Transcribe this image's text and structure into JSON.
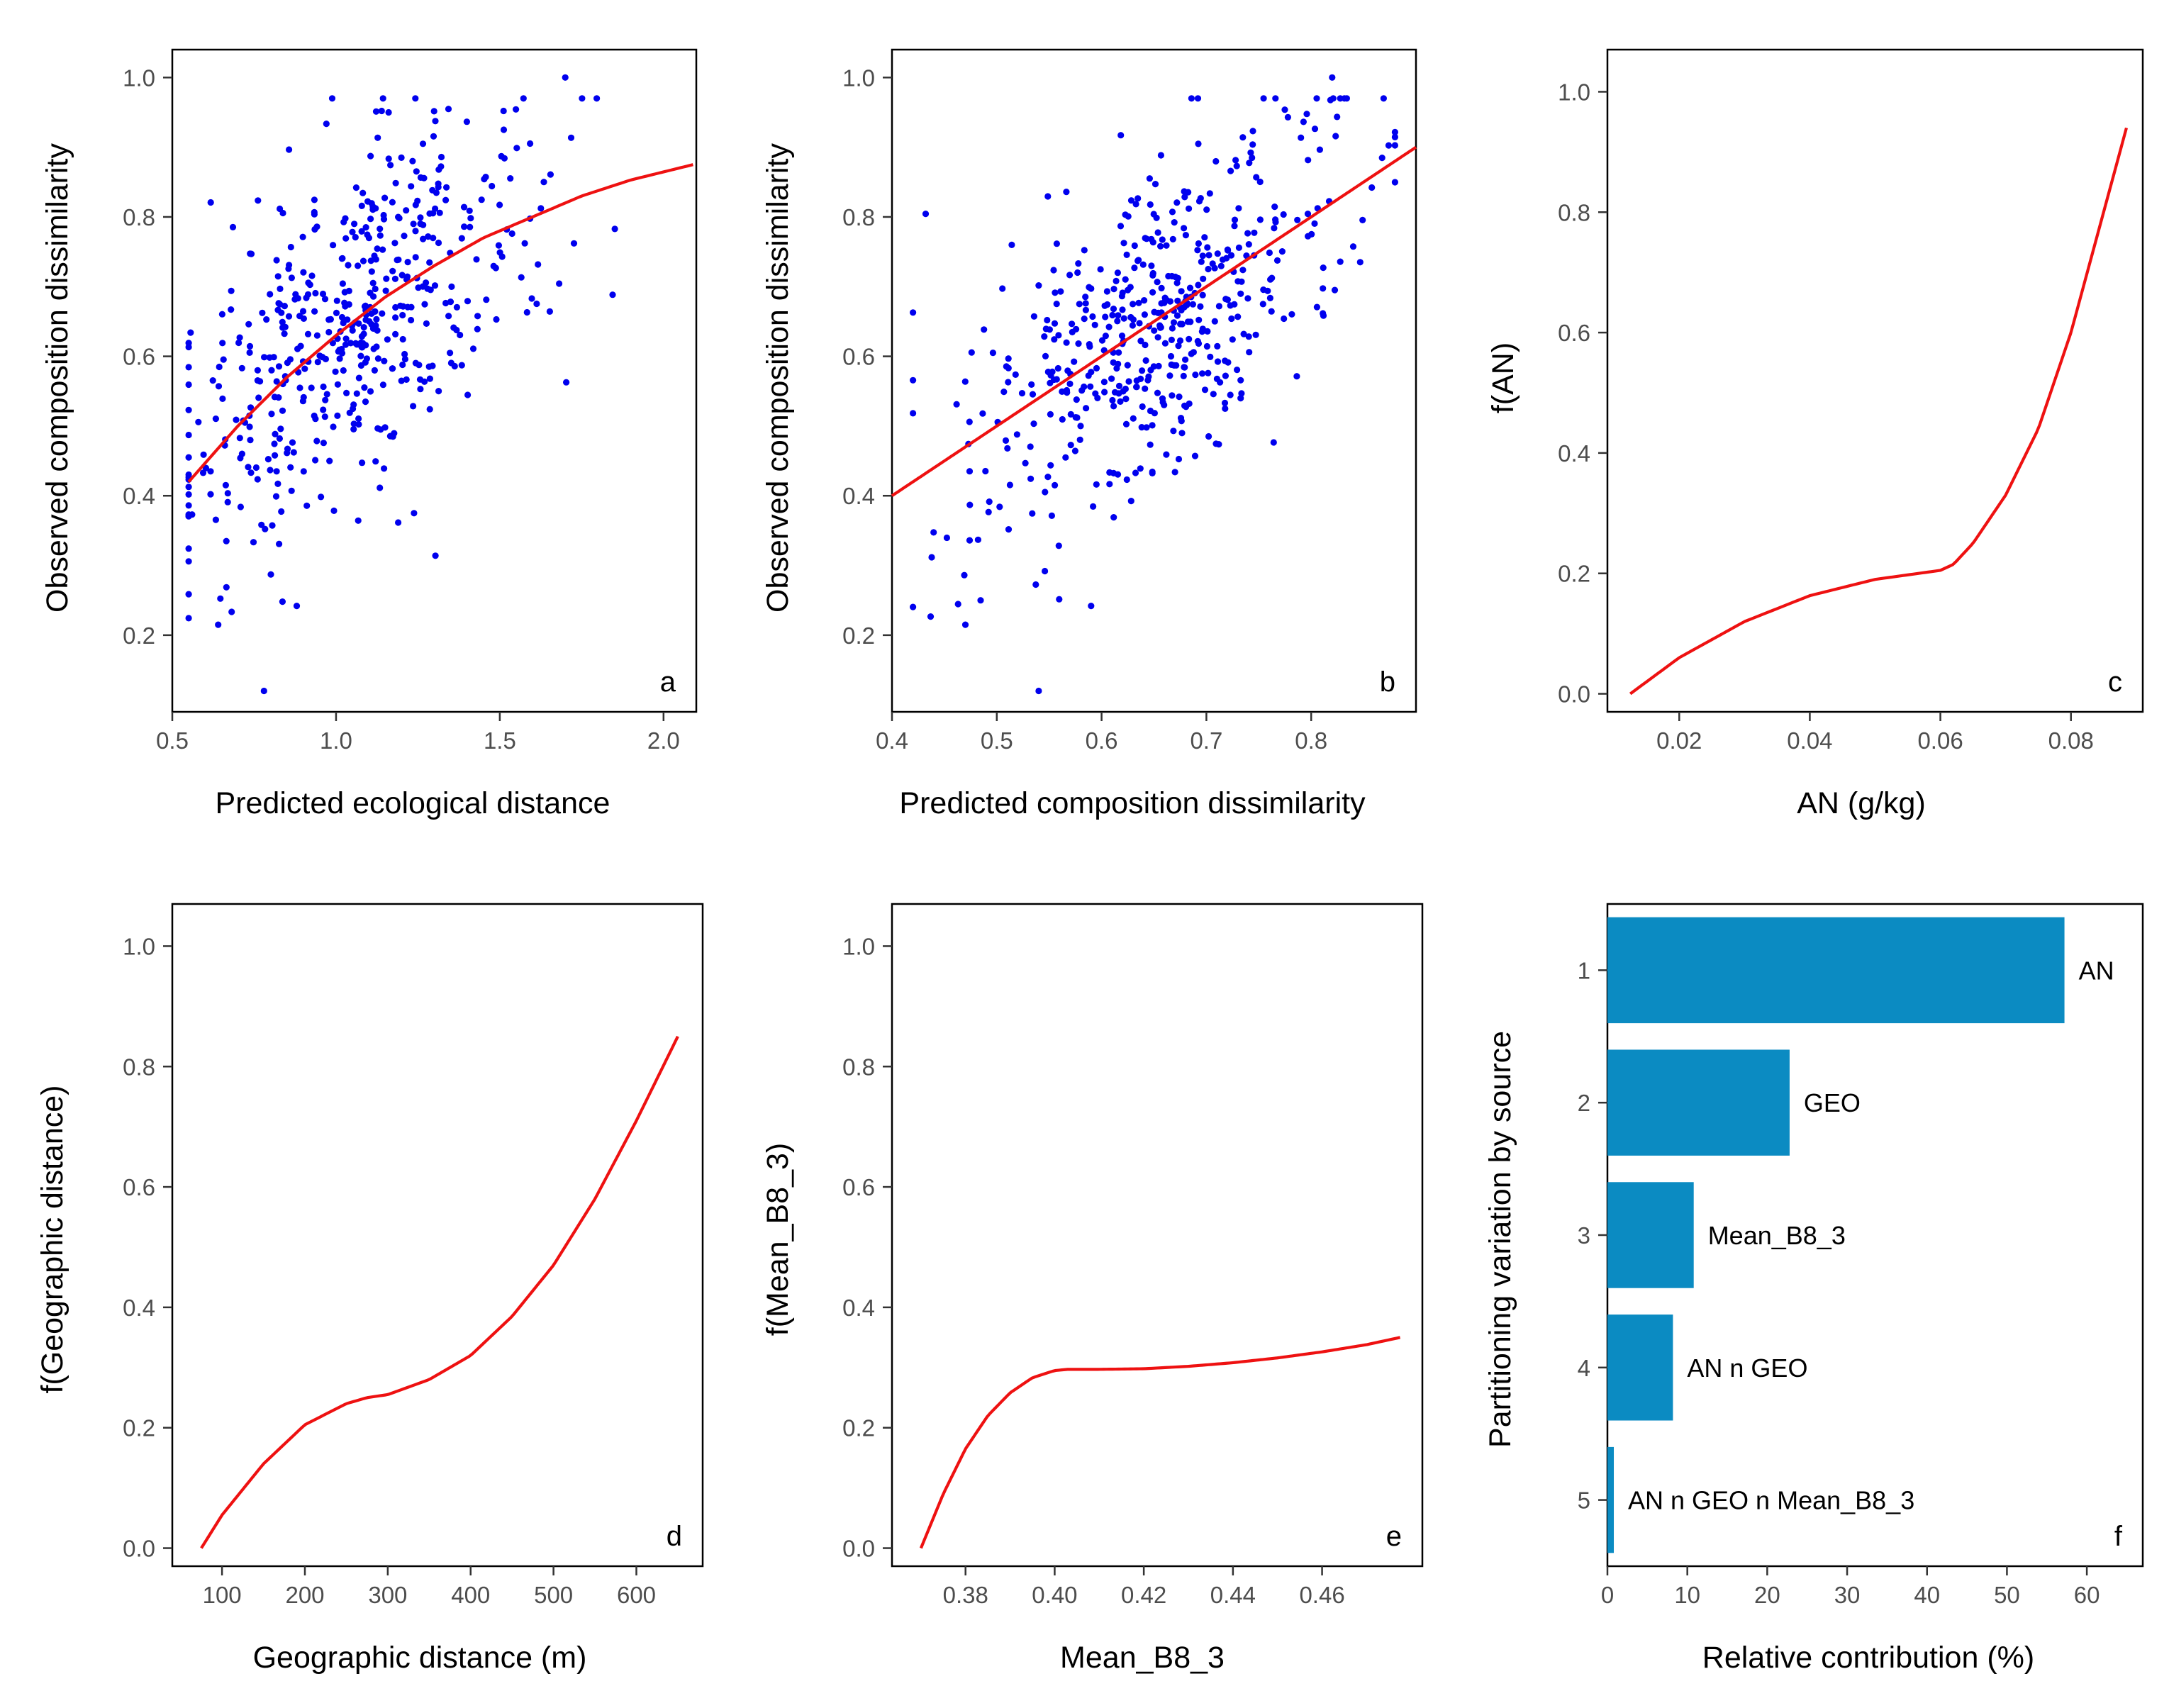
{
  "colors": {
    "points": "#0000ee",
    "curve": "#ee1111",
    "bars": "#0b8bc2",
    "frame": "#000000"
  },
  "chart_data": [
    {
      "panel": "a",
      "type": "scatter",
      "xlabel": "Predicted ecological distance",
      "ylabel": "Observed composition dissimilarity",
      "xlim": [
        0.5,
        2.1
      ],
      "ylim": [
        0.09,
        1.04
      ],
      "xticks": [
        0.5,
        1.0,
        1.5,
        2.0
      ],
      "xtick_labels": [
        "0.5",
        "1.0",
        "1.5",
        "2.0"
      ],
      "yticks": [
        0.2,
        0.4,
        0.6,
        0.8,
        1.0
      ],
      "ytick_labels": [
        "0.2",
        "0.4",
        "0.6",
        "0.8",
        "1.0"
      ],
      "fit_line": {
        "x": [
          0.55,
          0.7,
          0.85,
          1.0,
          1.15,
          1.3,
          1.45,
          1.6,
          1.75,
          1.9,
          2.09
        ],
        "y": [
          0.42,
          0.5,
          0.57,
          0.63,
          0.685,
          0.73,
          0.77,
          0.8,
          0.83,
          0.853,
          0.875
        ]
      },
      "n_points": 500,
      "outliers": [
        [
          0.78,
          0.12
        ],
        [
          1.7,
          1.0
        ],
        [
          0.64,
          0.215
        ],
        [
          0.88,
          0.242
        ]
      ]
    },
    {
      "panel": "b",
      "type": "scatter",
      "xlabel": "Predicted composition dissimilarity",
      "ylabel": "Observed composition dissimilarity",
      "xlim": [
        0.4,
        0.9
      ],
      "ylim": [
        0.09,
        1.04
      ],
      "xticks": [
        0.4,
        0.5,
        0.6,
        0.7,
        0.8
      ],
      "xtick_labels": [
        "0.4",
        "0.5",
        "0.6",
        "0.7",
        "0.8"
      ],
      "yticks": [
        0.2,
        0.4,
        0.6,
        0.8,
        1.0
      ],
      "ytick_labels": [
        "0.2",
        "0.4",
        "0.6",
        "0.8",
        "1.0"
      ],
      "fit_line": {
        "x": [
          0.4,
          0.9
        ],
        "y": [
          0.4,
          0.9
        ]
      },
      "n_points": 500,
      "outliers": [
        [
          0.54,
          0.12
        ],
        [
          0.82,
          1.0
        ],
        [
          0.47,
          0.215
        ],
        [
          0.59,
          0.242
        ]
      ]
    },
    {
      "panel": "c",
      "type": "line",
      "xlabel": "AN (g/kg)",
      "ylabel": "f(AN)",
      "xlim": [
        0.009,
        0.091
      ],
      "ylim": [
        -0.03,
        1.07
      ],
      "xticks": [
        0.02,
        0.04,
        0.06,
        0.08
      ],
      "xtick_labels": [
        "0.02",
        "0.04",
        "0.06",
        "0.08"
      ],
      "yticks": [
        0.0,
        0.2,
        0.4,
        0.6,
        0.8,
        1.0
      ],
      "ytick_labels": [
        "0.0",
        "0.2",
        "0.4",
        "0.6",
        "0.8",
        "1.0"
      ],
      "series": [
        {
          "name": "f(AN)",
          "x": [
            0.0125,
            0.02,
            0.03,
            0.04,
            0.05,
            0.06,
            0.062,
            0.065,
            0.07,
            0.075,
            0.08,
            0.085,
            0.0885
          ],
          "y": [
            0.0,
            0.06,
            0.12,
            0.163,
            0.19,
            0.205,
            0.215,
            0.25,
            0.33,
            0.44,
            0.6,
            0.8,
            0.94
          ]
        }
      ]
    },
    {
      "panel": "d",
      "type": "line",
      "xlabel": "Geographic distance (m)",
      "ylabel": "f(Geographic distance)",
      "xlim": [
        40,
        680
      ],
      "ylim": [
        -0.03,
        1.07
      ],
      "xticks": [
        100,
        200,
        300,
        400,
        500,
        600
      ],
      "xtick_labels": [
        "100",
        "200",
        "300",
        "400",
        "500",
        "600"
      ],
      "yticks": [
        0.0,
        0.2,
        0.4,
        0.6,
        0.8,
        1.0
      ],
      "ytick_labels": [
        "0.0",
        "0.2",
        "0.4",
        "0.6",
        "0.8",
        "1.0"
      ],
      "series": [
        {
          "name": "f(Geographic distance)",
          "x": [
            75,
            100,
            150,
            200,
            250,
            275,
            300,
            350,
            400,
            450,
            500,
            550,
            600,
            650
          ],
          "y": [
            0.0,
            0.055,
            0.14,
            0.205,
            0.24,
            0.25,
            0.255,
            0.28,
            0.32,
            0.385,
            0.47,
            0.58,
            0.71,
            0.85
          ]
        }
      ]
    },
    {
      "panel": "e",
      "type": "line",
      "xlabel": "Mean_B8_3",
      "ylabel": "f(Mean_B8_3)",
      "xlim": [
        0.3635,
        0.4825
      ],
      "ylim": [
        -0.03,
        1.07
      ],
      "xticks": [
        0.38,
        0.4,
        0.42,
        0.44,
        0.46
      ],
      "xtick_labels": [
        "0.38",
        "0.40",
        "0.42",
        "0.44",
        "0.46"
      ],
      "yticks": [
        0.0,
        0.2,
        0.4,
        0.6,
        0.8,
        1.0
      ],
      "ytick_labels": [
        "0.0",
        "0.2",
        "0.4",
        "0.6",
        "0.8",
        "1.0"
      ],
      "series": [
        {
          "name": "f(Mean_B8_3)",
          "x": [
            0.37,
            0.375,
            0.38,
            0.385,
            0.39,
            0.395,
            0.4,
            0.403,
            0.41,
            0.42,
            0.43,
            0.44,
            0.45,
            0.46,
            0.47,
            0.4775
          ],
          "y": [
            0.0,
            0.09,
            0.165,
            0.22,
            0.258,
            0.283,
            0.295,
            0.297,
            0.297,
            0.298,
            0.302,
            0.308,
            0.316,
            0.326,
            0.338,
            0.35
          ]
        }
      ]
    },
    {
      "panel": "f",
      "type": "bar",
      "orientation": "horizontal",
      "xlabel": "Relative contribution (%)",
      "ylabel": "Partitioning variation by source",
      "xlim": [
        0,
        67
      ],
      "xticks": [
        0,
        10,
        20,
        30,
        40,
        50,
        60
      ],
      "xtick_labels": [
        "0",
        "10",
        "20",
        "30",
        "40",
        "50",
        "60"
      ],
      "categories": [
        "1",
        "2",
        "3",
        "4",
        "5"
      ],
      "values": [
        57.2,
        22.8,
        10.8,
        8.2,
        0.8
      ],
      "bar_labels": [
        "AN",
        "GEO",
        "Mean_B8_3",
        "AN n GEO",
        "AN n GEO n Mean_B8_3"
      ]
    }
  ]
}
